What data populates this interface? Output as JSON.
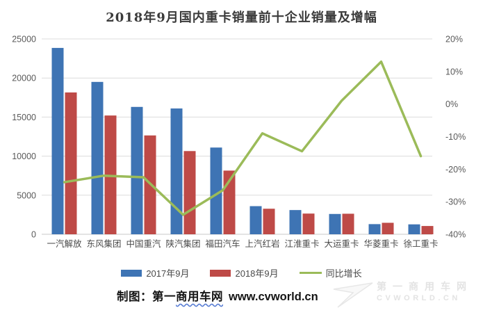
{
  "chart_data": {
    "type": "bar",
    "title": "2018年9月国内重卡销量前十企业销量及增幅",
    "categories": [
      "一汽解放",
      "东风集团",
      "中国重汽",
      "陕汽集团",
      "福田汽车",
      "上汽红岩",
      "江淮重卡",
      "大运重卡",
      "华菱重卡",
      "徐工重卡"
    ],
    "series": [
      {
        "name": "2017年9月",
        "color": "#3E74B4",
        "values": [
          23850,
          19500,
          16300,
          16100,
          11100,
          3600,
          3100,
          2600,
          1300,
          1270
        ]
      },
      {
        "name": "2018年9月",
        "color": "#BE4A47",
        "values": [
          18150,
          15200,
          12650,
          10650,
          8150,
          3270,
          2650,
          2630,
          1470,
          1060
        ]
      }
    ],
    "line_series": {
      "name": "同比增长",
      "color": "#9BBB59",
      "axis": "right",
      "unit": "%",
      "values": [
        -24,
        -22,
        -22.5,
        -34,
        -26.5,
        -9,
        -14.5,
        1,
        13,
        -16
      ]
    },
    "left_axis": {
      "min": 0,
      "max": 25000,
      "step": 5000,
      "ticks": [
        "0",
        "5000",
        "10000",
        "15000",
        "20000",
        "25000"
      ]
    },
    "right_axis": {
      "min": -40,
      "max": 20,
      "step": 10,
      "ticks": [
        "20%",
        "10%",
        "0%",
        "-10%",
        "-20%",
        "-30%",
        "-40%"
      ]
    },
    "grid": true,
    "legend_position": "bottom"
  },
  "caption": {
    "prefix": "制图：第一",
    "source": "商用车网",
    "url": "www.cvworld.cn"
  },
  "watermark": {
    "line1": "第一商用车网",
    "line2": "CVWORLD.CN"
  },
  "colors": {
    "background": "#ffffff",
    "gridline": "#dcdcdc",
    "axis_text": "#595959",
    "title_text": "#3a3a3a"
  }
}
